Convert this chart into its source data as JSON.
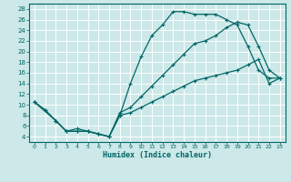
{
  "xlabel": "Humidex (Indice chaleur)",
  "bg_color": "#cce8e8",
  "line_color": "#006666",
  "x_ticks": [
    0,
    1,
    2,
    3,
    4,
    5,
    6,
    7,
    8,
    9,
    10,
    11,
    12,
    13,
    14,
    15,
    16,
    17,
    18,
    19,
    20,
    21,
    22,
    23
  ],
  "y_ticks": [
    4,
    6,
    8,
    10,
    12,
    14,
    16,
    18,
    20,
    22,
    24,
    26,
    28
  ],
  "ylim": [
    3,
    29
  ],
  "xlim": [
    -0.5,
    23.5
  ],
  "line1_x": [
    0,
    1,
    2,
    3,
    4,
    5,
    6,
    7,
    8,
    9,
    10,
    11,
    12,
    13,
    14,
    15,
    16,
    17,
    18,
    19,
    20,
    21,
    22,
    23
  ],
  "line1_y": [
    10.5,
    9.0,
    7.0,
    5.0,
    5.0,
    5.0,
    4.5,
    4.0,
    8.0,
    14.0,
    19.0,
    23.0,
    25.0,
    27.5,
    27.5,
    27.0,
    27.0,
    27.0,
    26.0,
    25.0,
    21.0,
    16.5,
    15.0,
    15.0
  ],
  "line1_markers": [
    0,
    1,
    2,
    3,
    4,
    5,
    6,
    7,
    8,
    9,
    10,
    11,
    12,
    13,
    14,
    15,
    16,
    17,
    18,
    19,
    20,
    21,
    22,
    23
  ],
  "line2_x": [
    0,
    2,
    3,
    4,
    5,
    6,
    7,
    8,
    9,
    10,
    11,
    12,
    13,
    14,
    15,
    16,
    17,
    18,
    19,
    20,
    21,
    22,
    23
  ],
  "line2_y": [
    10.5,
    7.0,
    5.0,
    5.5,
    5.0,
    4.5,
    4.0,
    8.5,
    9.5,
    11.5,
    13.5,
    15.5,
    17.5,
    19.5,
    21.5,
    22.0,
    23.0,
    24.5,
    25.5,
    25.0,
    21.0,
    16.5,
    15.0
  ],
  "line3_x": [
    0,
    1,
    2,
    3,
    4,
    5,
    6,
    7,
    8,
    9,
    10,
    11,
    12,
    13,
    14,
    15,
    16,
    17,
    18,
    19,
    20,
    21,
    22,
    23
  ],
  "line3_y": [
    10.5,
    9.0,
    7.0,
    5.0,
    5.0,
    5.0,
    4.5,
    4.0,
    8.0,
    8.5,
    9.5,
    10.5,
    11.5,
    12.5,
    13.5,
    14.5,
    15.0,
    15.5,
    16.0,
    16.5,
    17.5,
    18.5,
    14.0,
    15.0
  ]
}
